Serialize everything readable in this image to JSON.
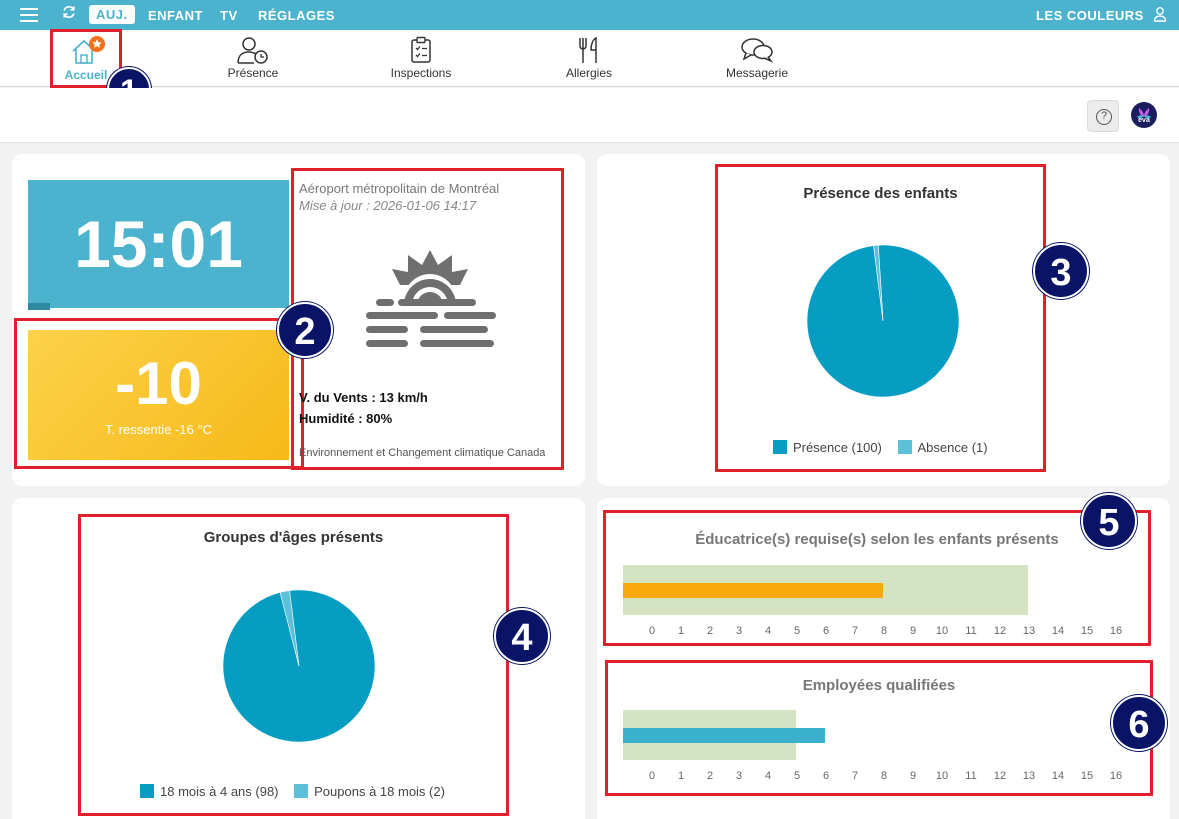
{
  "topbar": {
    "tabs": [
      "AUJ.",
      "ENFANT",
      "TV",
      "RÉGLAGES"
    ],
    "right_label": "LES COULEURS"
  },
  "nav": {
    "items": [
      {
        "label": "Accueil"
      },
      {
        "label": "Présence"
      },
      {
        "label": "Inspections"
      },
      {
        "label": "Allergies"
      },
      {
        "label": "Messagerie"
      }
    ]
  },
  "header": {
    "help_symbol": "?",
    "logo_text": "eva"
  },
  "clock": {
    "time": "15:01"
  },
  "temperature": {
    "value": "-10",
    "feels_like": "T. ressentie -16 °C"
  },
  "weather": {
    "station": "Aéroport métropolitain de Montréal",
    "updated": "Mise à jour : 2026-01-06 14:17",
    "wind": "V. du Vents : 13 km/h",
    "humidity": "Humidité : 80%",
    "source": "Environnement et Changement climatique Canada",
    "icon": "sun-fog-icon"
  },
  "badges": [
    "1",
    "2",
    "3",
    "4",
    "5",
    "6"
  ],
  "colors": {
    "primary": "#4bb3cd",
    "pie_main": "#079dc2",
    "pie_minor": "#5bc0d8",
    "bar_bg": "#d4e3c1",
    "orange": "#f7a90e",
    "teal_bar": "#3ab0cc",
    "highlight": "#e0202a",
    "badge": "#0a1466"
  },
  "chart_data": [
    {
      "type": "pie",
      "title": "Présence des enfants",
      "categories": [
        "Présence (100)",
        "Absence (1)"
      ],
      "values": [
        100,
        1
      ]
    },
    {
      "type": "pie",
      "title": "Groupes d'âges présents",
      "categories": [
        "18 mois à 4 ans (98)",
        "Poupons à 18 mois (2)"
      ],
      "values": [
        98,
        2
      ]
    },
    {
      "type": "bar",
      "title": "Éducatrice(s) requise(s) selon les enfants présents",
      "orientation": "horizontal",
      "x_ticks": [
        "0",
        "1",
        "2",
        "3",
        "4",
        "5",
        "6",
        "7",
        "8",
        "9",
        "10",
        "11",
        "12",
        "13",
        "14",
        "15",
        "16"
      ],
      "xlim": [
        0,
        16
      ],
      "series": [
        {
          "values": [
            13
          ]
        },
        {
          "values": [
            8
          ]
        }
      ]
    },
    {
      "type": "bar",
      "title": "Employées qualifiées",
      "orientation": "horizontal",
      "x_ticks": [
        "0",
        "1",
        "2",
        "3",
        "4",
        "5",
        "6",
        "7",
        "8",
        "9",
        "10",
        "11",
        "12",
        "13",
        "14",
        "15",
        "16"
      ],
      "xlim": [
        0,
        16
      ],
      "series": [
        {
          "values": [
            5
          ]
        },
        {
          "values": [
            6
          ]
        }
      ]
    }
  ]
}
